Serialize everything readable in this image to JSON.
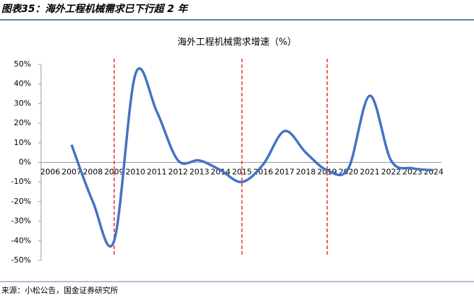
{
  "header": {
    "title": "图表35：海外工程机械需求已下行超 2 年"
  },
  "chart_data": {
    "type": "line",
    "title": "海外工程机械需求增速（%）",
    "categories": [
      "2006",
      "2007",
      "2008",
      "2009",
      "2010",
      "2011",
      "2012",
      "2013",
      "2014",
      "2015",
      "2016",
      "2017",
      "2018",
      "2019",
      "2020",
      "2021",
      "2022",
      "2023",
      "2024"
    ],
    "series": [
      {
        "name": "海外工程机械需求增速",
        "color": "#4472c4",
        "values": [
          null,
          9,
          -20,
          -40,
          45,
          26,
          1,
          1,
          -4,
          -10,
          -1,
          16,
          5,
          -4,
          -3,
          34,
          1,
          -3,
          -4
        ]
      }
    ],
    "ylim": [
      -50,
      50
    ],
    "yticks": [
      {
        "value": 50,
        "label": "50%"
      },
      {
        "value": 40,
        "label": "40%"
      },
      {
        "value": 30,
        "label": "30%"
      },
      {
        "value": 20,
        "label": "20%"
      },
      {
        "value": 10,
        "label": "10%"
      },
      {
        "value": 0,
        "label": "0%"
      },
      {
        "value": -10,
        "label": "-10%"
      },
      {
        "value": -20,
        "label": "-20%"
      },
      {
        "value": -30,
        "label": "-30%"
      },
      {
        "value": -40,
        "label": "-40%"
      },
      {
        "value": -50,
        "label": "-50%"
      }
    ],
    "highlight_categories": [
      "2009",
      "2015",
      "2019"
    ],
    "highlight_color": "#e00000",
    "smooth": true
  },
  "footer": {
    "source": "来源：小松公告，国金证券研究所"
  }
}
